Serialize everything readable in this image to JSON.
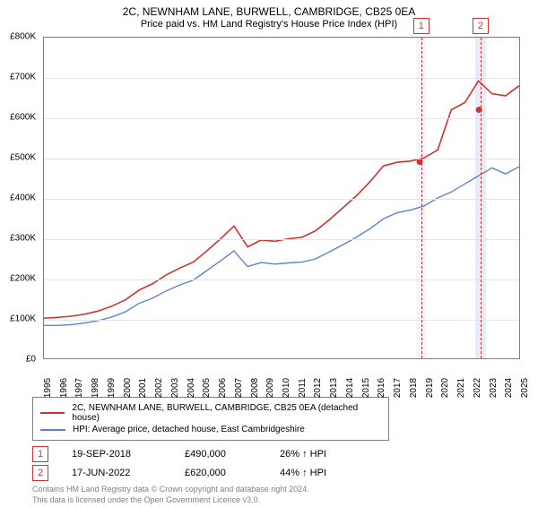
{
  "title": "2C, NEWNHAM LANE, BURWELL, CAMBRIDGE, CB25 0EA",
  "subtitle": "Price paid vs. HM Land Registry's House Price Index (HPI)",
  "chart": {
    "type": "line",
    "ylim": [
      0,
      800000
    ],
    "ytick_step": 100000,
    "y_ticks": [
      "£0",
      "£100K",
      "£200K",
      "£300K",
      "£400K",
      "£500K",
      "£600K",
      "£700K",
      "£800K"
    ],
    "x_years": [
      "1995",
      "1996",
      "1997",
      "1998",
      "1999",
      "2000",
      "2001",
      "2002",
      "2003",
      "2004",
      "2005",
      "2006",
      "2007",
      "2008",
      "2009",
      "2010",
      "2011",
      "2012",
      "2013",
      "2014",
      "2015",
      "2016",
      "2017",
      "2018",
      "2019",
      "2020",
      "2021",
      "2022",
      "2023",
      "2024",
      "2025"
    ],
    "grid_color": "#e5e5e5",
    "border_color": "#808080",
    "background_color": "#ffffff",
    "series": [
      {
        "name": "property",
        "color": "#d03030",
        "width": 1.6,
        "data": [
          100,
          102,
          105,
          110,
          118,
          130,
          146,
          170,
          186,
          208,
          225,
          240,
          268,
          298,
          330,
          278,
          295,
          292,
          298,
          302,
          318,
          345,
          375,
          405,
          440,
          480,
          489,
          492,
          500,
          520,
          620,
          638,
          692,
          660,
          655,
          680
        ]
      },
      {
        "name": "hpi",
        "color": "#5f83c7",
        "width": 1.4,
        "data": [
          82,
          82,
          84,
          88,
          94,
          103,
          116,
          137,
          150,
          168,
          183,
          195,
          219,
          243,
          268,
          229,
          239,
          235,
          238,
          240,
          248,
          265,
          283,
          302,
          323,
          348,
          363,
          370,
          380,
          400,
          415,
          435,
          455,
          475,
          460,
          478
        ]
      }
    ],
    "markers": [
      {
        "num": "1",
        "year_frac": 2018.72,
        "band_years": 0.6,
        "band_color": "#f5f5fa",
        "point_y": 490000,
        "point_color": "#d03030"
      },
      {
        "num": "2",
        "year_frac": 2022.46,
        "band_years": 0.7,
        "band_color": "#e8ecf7",
        "point_y": 620000,
        "point_color": "#d03030"
      }
    ],
    "series_scale_divisor": 1000
  },
  "legend": {
    "items": [
      {
        "color": "#d03030",
        "label": "2C, NEWNHAM LANE, BURWELL, CAMBRIDGE, CB25 0EA (detached house)"
      },
      {
        "color": "#5f83c7",
        "label": "HPI: Average price, detached house, East Cambridgeshire"
      }
    ]
  },
  "sales": [
    {
      "num": "1",
      "date": "19-SEP-2018",
      "price": "£490,000",
      "pct": "26% ↑ HPI"
    },
    {
      "num": "2",
      "date": "17-JUN-2022",
      "price": "£620,000",
      "pct": "44% ↑ HPI"
    }
  ],
  "footnote": {
    "line1": "Contains HM Land Registry data © Crown copyright and database right 2024.",
    "line2": "This data is licensed under the Open Government Licence v3.0."
  }
}
